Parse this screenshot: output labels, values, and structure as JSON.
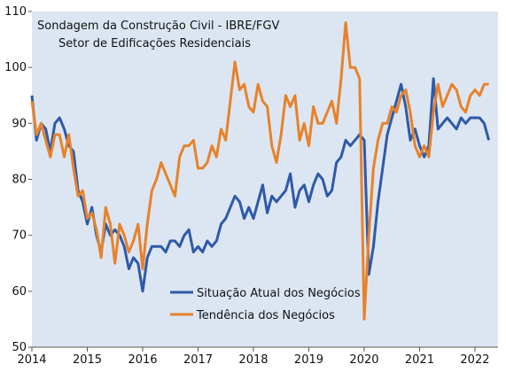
{
  "chart_data": {
    "type": "line",
    "title": "Sondagem da Construção Civil - IBRE/FGV",
    "subtitle": "Setor de Edificações Residenciais",
    "xlabel": "",
    "ylabel": "",
    "ylim": [
      50,
      110
    ],
    "yticks": [
      50,
      60,
      70,
      80,
      90,
      100,
      110
    ],
    "xlim": [
      "2014-01",
      "2022-06"
    ],
    "xticks": [
      "2014",
      "2015",
      "2016",
      "2017",
      "2018",
      "2019",
      "2020",
      "2021",
      "2022"
    ],
    "grid": false,
    "background_color": "#dce6f2",
    "legend_position": "bottom-center",
    "series": [
      {
        "name": "Situação Atual dos Negócios",
        "color": "#2e5aa8",
        "points": [
          [
            "2014-01",
            95
          ],
          [
            "2014-02",
            87
          ],
          [
            "2014-03",
            90
          ],
          [
            "2014-04",
            89
          ],
          [
            "2014-05",
            85
          ],
          [
            "2014-06",
            90
          ],
          [
            "2014-07",
            91
          ],
          [
            "2014-08",
            89
          ],
          [
            "2014-09",
            86
          ],
          [
            "2014-10",
            85
          ],
          [
            "2014-11",
            78
          ],
          [
            "2014-12",
            76
          ],
          [
            "2015-01",
            72
          ],
          [
            "2015-02",
            75
          ],
          [
            "2015-03",
            70
          ],
          [
            "2015-04",
            67
          ],
          [
            "2015-05",
            72
          ],
          [
            "2015-06",
            70
          ],
          [
            "2015-07",
            71
          ],
          [
            "2015-08",
            70
          ],
          [
            "2015-09",
            68
          ],
          [
            "2015-10",
            64
          ],
          [
            "2015-11",
            66
          ],
          [
            "2015-12",
            65
          ],
          [
            "2016-01",
            60
          ],
          [
            "2016-02",
            66
          ],
          [
            "2016-03",
            68
          ],
          [
            "2016-04",
            68
          ],
          [
            "2016-05",
            68
          ],
          [
            "2016-06",
            67
          ],
          [
            "2016-07",
            69
          ],
          [
            "2016-08",
            69
          ],
          [
            "2016-09",
            68
          ],
          [
            "2016-10",
            70
          ],
          [
            "2016-11",
            71
          ],
          [
            "2016-12",
            67
          ],
          [
            "2017-01",
            68
          ],
          [
            "2017-02",
            67
          ],
          [
            "2017-03",
            69
          ],
          [
            "2017-04",
            68
          ],
          [
            "2017-05",
            69
          ],
          [
            "2017-06",
            72
          ],
          [
            "2017-07",
            73
          ],
          [
            "2017-08",
            75
          ],
          [
            "2017-09",
            77
          ],
          [
            "2017-10",
            76
          ],
          [
            "2017-11",
            73
          ],
          [
            "2017-12",
            75
          ],
          [
            "2018-01",
            73
          ],
          [
            "2018-02",
            76
          ],
          [
            "2018-03",
            79
          ],
          [
            "2018-04",
            74
          ],
          [
            "2018-05",
            77
          ],
          [
            "2018-06",
            76
          ],
          [
            "2018-07",
            77
          ],
          [
            "2018-08",
            78
          ],
          [
            "2018-09",
            81
          ],
          [
            "2018-10",
            75
          ],
          [
            "2018-11",
            78
          ],
          [
            "2018-12",
            79
          ],
          [
            "2019-01",
            76
          ],
          [
            "2019-02",
            79
          ],
          [
            "2019-03",
            81
          ],
          [
            "2019-04",
            80
          ],
          [
            "2019-05",
            77
          ],
          [
            "2019-06",
            78
          ],
          [
            "2019-07",
            83
          ],
          [
            "2019-08",
            84
          ],
          [
            "2019-09",
            87
          ],
          [
            "2019-10",
            86
          ],
          [
            "2019-11",
            87
          ],
          [
            "2019-12",
            88
          ],
          [
            "2020-01",
            87
          ],
          [
            "2020-02",
            63
          ],
          [
            "2020-03",
            68
          ],
          [
            "2020-04",
            76
          ],
          [
            "2020-05",
            82
          ],
          [
            "2020-06",
            88
          ],
          [
            "2020-07",
            91
          ],
          [
            "2020-08",
            94
          ],
          [
            "2020-09",
            97
          ],
          [
            "2020-10",
            93
          ],
          [
            "2020-11",
            87
          ],
          [
            "2020-12",
            89
          ],
          [
            "2021-01",
            86
          ],
          [
            "2021-02",
            84
          ],
          [
            "2021-03",
            86
          ],
          [
            "2021-04",
            98
          ],
          [
            "2021-05",
            89
          ],
          [
            "2021-06",
            90
          ],
          [
            "2021-07",
            91
          ],
          [
            "2021-08",
            90
          ],
          [
            "2021-09",
            89
          ],
          [
            "2021-10",
            91
          ],
          [
            "2021-11",
            90
          ],
          [
            "2021-12",
            91
          ],
          [
            "2022-01",
            91
          ],
          [
            "2022-02",
            91
          ],
          [
            "2022-03",
            90
          ],
          [
            "2022-04",
            87
          ]
        ]
      },
      {
        "name": "Tendência dos Negócios",
        "color": "#e8822a",
        "points": [
          [
            "2014-01",
            94
          ],
          [
            "2014-02",
            88
          ],
          [
            "2014-03",
            90
          ],
          [
            "2014-04",
            87
          ],
          [
            "2014-05",
            84
          ],
          [
            "2014-06",
            88
          ],
          [
            "2014-07",
            88
          ],
          [
            "2014-08",
            84
          ],
          [
            "2014-09",
            88
          ],
          [
            "2014-10",
            82
          ],
          [
            "2014-11",
            77
          ],
          [
            "2014-12",
            78
          ],
          [
            "2015-01",
            73
          ],
          [
            "2015-02",
            74
          ],
          [
            "2015-03",
            71
          ],
          [
            "2015-04",
            66
          ],
          [
            "2015-05",
            75
          ],
          [
            "2015-06",
            72
          ],
          [
            "2015-07",
            65
          ],
          [
            "2015-08",
            72
          ],
          [
            "2015-09",
            70
          ],
          [
            "2015-10",
            67
          ],
          [
            "2015-11",
            69
          ],
          [
            "2015-12",
            72
          ],
          [
            "2016-01",
            64
          ],
          [
            "2016-02",
            72
          ],
          [
            "2016-03",
            78
          ],
          [
            "2016-04",
            80
          ],
          [
            "2016-05",
            83
          ],
          [
            "2016-06",
            81
          ],
          [
            "2016-07",
            79
          ],
          [
            "2016-08",
            77
          ],
          [
            "2016-09",
            84
          ],
          [
            "2016-10",
            86
          ],
          [
            "2016-11",
            86
          ],
          [
            "2016-12",
            87
          ],
          [
            "2017-01",
            82
          ],
          [
            "2017-02",
            82
          ],
          [
            "2017-03",
            83
          ],
          [
            "2017-04",
            86
          ],
          [
            "2017-05",
            84
          ],
          [
            "2017-06",
            89
          ],
          [
            "2017-07",
            87
          ],
          [
            "2017-08",
            94
          ],
          [
            "2017-09",
            101
          ],
          [
            "2017-10",
            96
          ],
          [
            "2017-11",
            97
          ],
          [
            "2017-12",
            93
          ],
          [
            "2018-01",
            92
          ],
          [
            "2018-02",
            97
          ],
          [
            "2018-03",
            94
          ],
          [
            "2018-04",
            93
          ],
          [
            "2018-05",
            86
          ],
          [
            "2018-06",
            83
          ],
          [
            "2018-07",
            88
          ],
          [
            "2018-08",
            95
          ],
          [
            "2018-09",
            93
          ],
          [
            "2018-10",
            95
          ],
          [
            "2018-11",
            87
          ],
          [
            "2018-12",
            90
          ],
          [
            "2019-01",
            86
          ],
          [
            "2019-02",
            93
          ],
          [
            "2019-03",
            90
          ],
          [
            "2019-04",
            90
          ],
          [
            "2019-05",
            92
          ],
          [
            "2019-06",
            94
          ],
          [
            "2019-07",
            90
          ],
          [
            "2019-08",
            98
          ],
          [
            "2019-09",
            108
          ],
          [
            "2019-10",
            100
          ],
          [
            "2019-11",
            100
          ],
          [
            "2019-12",
            98
          ],
          [
            "2020-01",
            55
          ],
          [
            "2020-02",
            70
          ],
          [
            "2020-03",
            82
          ],
          [
            "2020-04",
            87
          ],
          [
            "2020-05",
            90
          ],
          [
            "2020-06",
            90
          ],
          [
            "2020-07",
            93
          ],
          [
            "2020-08",
            92
          ],
          [
            "2020-09",
            95
          ],
          [
            "2020-10",
            96
          ],
          [
            "2020-11",
            92
          ],
          [
            "2020-12",
            86
          ],
          [
            "2021-01",
            84
          ],
          [
            "2021-02",
            86
          ],
          [
            "2021-03",
            84
          ],
          [
            "2021-04",
            92
          ],
          [
            "2021-05",
            97
          ],
          [
            "2021-06",
            93
          ],
          [
            "2021-07",
            95
          ],
          [
            "2021-08",
            97
          ],
          [
            "2021-09",
            96
          ],
          [
            "2021-10",
            93
          ],
          [
            "2021-11",
            92
          ],
          [
            "2021-12",
            95
          ],
          [
            "2022-01",
            96
          ],
          [
            "2022-02",
            95
          ],
          [
            "2022-03",
            97
          ],
          [
            "2022-04",
            97
          ]
        ]
      }
    ]
  }
}
